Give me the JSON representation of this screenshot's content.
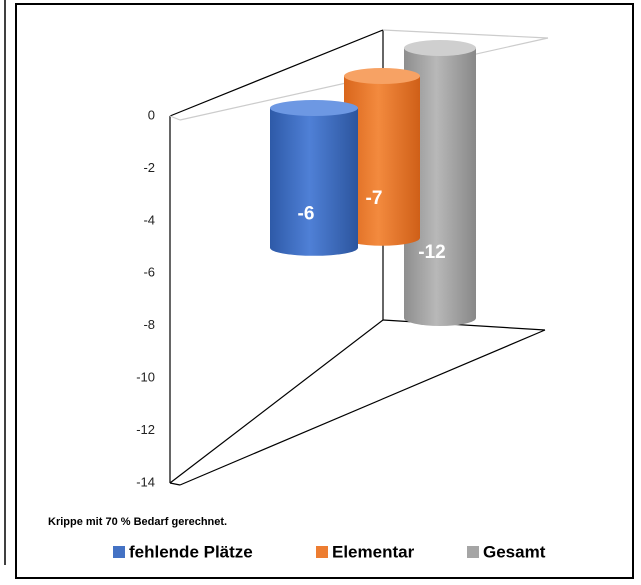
{
  "chart_data": {
    "type": "bar",
    "three_d": true,
    "annotation": "Krippe mit 70 % Bedarf gerechnet.",
    "series": [
      {
        "name": "fehlende Plätze",
        "color": "#4472c4",
        "values": [
          -6
        ]
      },
      {
        "name": "Elementar",
        "color": "#ed7d31",
        "values": [
          -7
        ]
      },
      {
        "name": "Gesamt",
        "color": "#a5a5a5",
        "values": [
          -12
        ]
      }
    ],
    "ylim": [
      -14,
      0
    ],
    "yticks": [
      0,
      -2,
      -4,
      -6,
      -8,
      -10,
      -12,
      -14
    ],
    "legend": "bottom",
    "grid": false
  }
}
